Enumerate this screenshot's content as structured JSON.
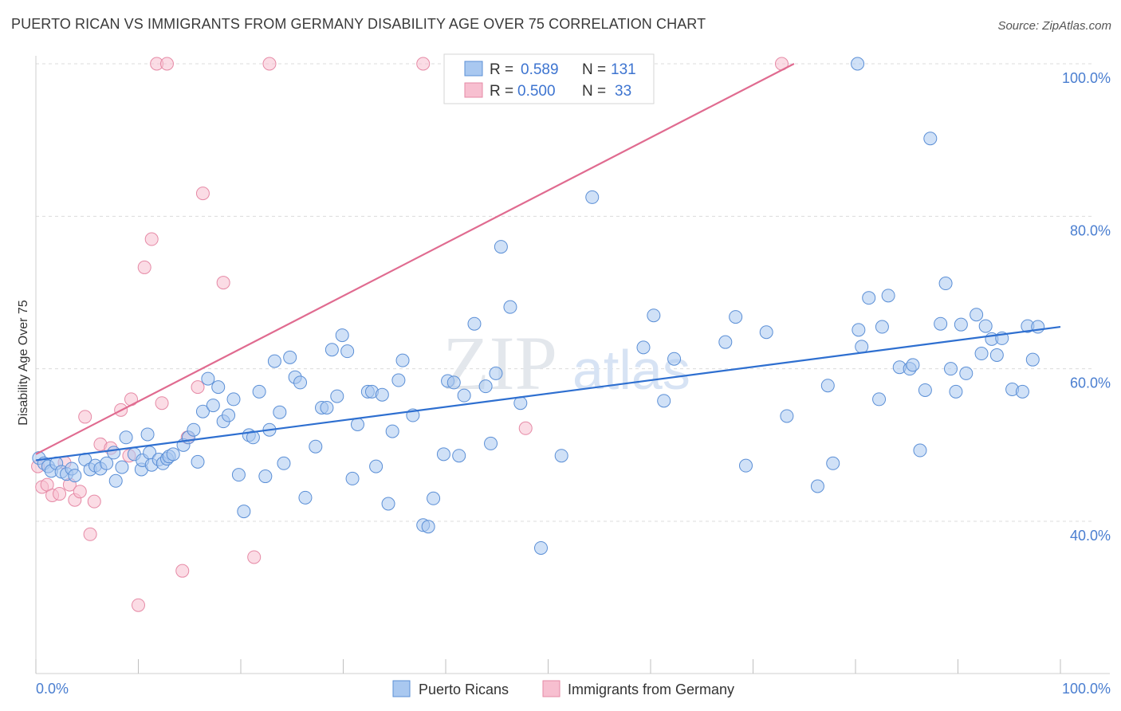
{
  "header": {
    "title": "PUERTO RICAN VS IMMIGRANTS FROM GERMANY DISABILITY AGE OVER 75 CORRELATION CHART",
    "source": "Source: ZipAtlas.com"
  },
  "watermark": {
    "zip": "ZIP",
    "atlas": "atlas"
  },
  "stats_legend": [
    {
      "r_label": "R =",
      "r_value": "0.589",
      "n_label": "N =",
      "n_value": "131"
    },
    {
      "r_label": "R =",
      "r_value": "0.500",
      "n_label": "N =",
      "n_value": "33"
    }
  ],
  "chart_data": {
    "type": "scatter",
    "title": "PUERTO RICAN VS IMMIGRANTS FROM GERMANY DISABILITY AGE OVER 75 CORRELATION CHART",
    "xlabel": "",
    "ylabel": "Disability Age Over 75",
    "xlim": [
      0,
      100
    ],
    "ylim": [
      20,
      102
    ],
    "x_tick_labels": [
      {
        "value": 0,
        "label": "0.0%"
      },
      {
        "value": 100,
        "label": "100.0%"
      }
    ],
    "y_tick_labels": [
      {
        "value": 40,
        "label": "40.0%"
      },
      {
        "value": 60,
        "label": "60.0%"
      },
      {
        "value": 80,
        "label": "80.0%"
      },
      {
        "value": 100,
        "label": "100.0%"
      }
    ],
    "grid": true,
    "legend_position": "bottom",
    "colors": {
      "series1_fill": "#a9c8f0",
      "series1_stroke": "#5b8fd6",
      "series1_line": "#2e6fd0",
      "series2_fill": "#f7bfd0",
      "series2_stroke": "#e68aa6",
      "series2_line": "#e06b90"
    },
    "series": [
      {
        "name": "Puerto Ricans",
        "trend": {
          "x": [
            0,
            100
          ],
          "y": [
            48.0,
            65.5
          ]
        },
        "points": [
          [
            0.3,
            48.3
          ],
          [
            0.8,
            47.6
          ],
          [
            1.2,
            47.2
          ],
          [
            1.5,
            46.6
          ],
          [
            2.0,
            47.6
          ],
          [
            2.5,
            46.5
          ],
          [
            3.0,
            46.2
          ],
          [
            3.5,
            46.9
          ],
          [
            3.8,
            46.0
          ],
          [
            4.8,
            48.1
          ],
          [
            5.3,
            46.8
          ],
          [
            5.8,
            47.3
          ],
          [
            6.3,
            46.9
          ],
          [
            6.9,
            47.6
          ],
          [
            7.6,
            49.0
          ],
          [
            7.8,
            45.3
          ],
          [
            8.4,
            47.1
          ],
          [
            8.8,
            51.0
          ],
          [
            9.6,
            48.8
          ],
          [
            10.3,
            46.8
          ],
          [
            10.4,
            48.0
          ],
          [
            10.9,
            51.4
          ],
          [
            11.1,
            49.0
          ],
          [
            11.3,
            47.4
          ],
          [
            12.0,
            48.1
          ],
          [
            12.4,
            47.6
          ],
          [
            12.8,
            48.2
          ],
          [
            13.0,
            48.5
          ],
          [
            13.4,
            48.8
          ],
          [
            14.4,
            50.0
          ],
          [
            14.9,
            51.0
          ],
          [
            15.4,
            52.0
          ],
          [
            15.8,
            47.8
          ],
          [
            16.3,
            54.4
          ],
          [
            16.8,
            58.7
          ],
          [
            17.3,
            55.2
          ],
          [
            17.8,
            57.6
          ],
          [
            18.3,
            53.1
          ],
          [
            18.8,
            53.9
          ],
          [
            19.3,
            56.0
          ],
          [
            19.8,
            46.1
          ],
          [
            20.3,
            41.3
          ],
          [
            20.8,
            51.3
          ],
          [
            21.2,
            51.0
          ],
          [
            21.8,
            57.0
          ],
          [
            22.4,
            45.9
          ],
          [
            22.8,
            52.0
          ],
          [
            23.3,
            61.0
          ],
          [
            23.8,
            54.3
          ],
          [
            24.2,
            47.6
          ],
          [
            24.8,
            61.5
          ],
          [
            25.3,
            58.9
          ],
          [
            25.8,
            58.2
          ],
          [
            26.3,
            43.1
          ],
          [
            27.3,
            49.8
          ],
          [
            27.9,
            54.9
          ],
          [
            28.4,
            54.9
          ],
          [
            28.9,
            62.5
          ],
          [
            29.4,
            56.4
          ],
          [
            29.9,
            64.4
          ],
          [
            30.4,
            62.3
          ],
          [
            30.9,
            45.6
          ],
          [
            31.4,
            52.7
          ],
          [
            32.4,
            57.0
          ],
          [
            32.8,
            57.0
          ],
          [
            33.2,
            47.2
          ],
          [
            33.8,
            56.6
          ],
          [
            34.4,
            42.3
          ],
          [
            34.8,
            51.8
          ],
          [
            35.4,
            58.5
          ],
          [
            35.8,
            61.1
          ],
          [
            36.8,
            53.9
          ],
          [
            37.8,
            39.5
          ],
          [
            38.3,
            39.3
          ],
          [
            38.8,
            43.0
          ],
          [
            39.8,
            48.8
          ],
          [
            40.2,
            58.4
          ],
          [
            40.8,
            58.2
          ],
          [
            41.3,
            48.6
          ],
          [
            41.8,
            56.5
          ],
          [
            42.8,
            65.9
          ],
          [
            43.9,
            57.7
          ],
          [
            44.4,
            50.2
          ],
          [
            44.9,
            59.4
          ],
          [
            45.4,
            76.0
          ],
          [
            46.3,
            68.1
          ],
          [
            47.3,
            55.5
          ],
          [
            49.3,
            36.5
          ],
          [
            51.3,
            48.6
          ],
          [
            54.3,
            82.5
          ],
          [
            59.3,
            62.8
          ],
          [
            60.3,
            67.0
          ],
          [
            61.3,
            55.8
          ],
          [
            62.3,
            61.3
          ],
          [
            67.3,
            63.5
          ],
          [
            68.3,
            66.8
          ],
          [
            69.3,
            47.3
          ],
          [
            71.3,
            64.8
          ],
          [
            73.3,
            53.8
          ],
          [
            76.3,
            44.6
          ],
          [
            77.3,
            57.8
          ],
          [
            77.8,
            47.6
          ],
          [
            80.3,
            65.1
          ],
          [
            80.6,
            62.9
          ],
          [
            81.3,
            69.3
          ],
          [
            82.3,
            56.0
          ],
          [
            82.6,
            65.5
          ],
          [
            83.2,
            69.6
          ],
          [
            84.3,
            60.2
          ],
          [
            85.3,
            60.0
          ],
          [
            85.6,
            60.5
          ],
          [
            86.3,
            49.3
          ],
          [
            86.8,
            57.2
          ],
          [
            87.3,
            90.2
          ],
          [
            88.3,
            65.9
          ],
          [
            88.8,
            71.2
          ],
          [
            89.3,
            60.0
          ],
          [
            89.8,
            57.0
          ],
          [
            90.3,
            65.8
          ],
          [
            90.8,
            59.4
          ],
          [
            91.8,
            67.1
          ],
          [
            92.3,
            62.0
          ],
          [
            92.7,
            65.6
          ],
          [
            93.3,
            63.9
          ],
          [
            93.8,
            61.8
          ],
          [
            94.3,
            64.0
          ],
          [
            95.3,
            57.3
          ],
          [
            96.3,
            57.0
          ],
          [
            96.8,
            65.6
          ],
          [
            97.3,
            61.2
          ],
          [
            97.8,
            65.5
          ],
          [
            80.2,
            100.0
          ]
        ]
      },
      {
        "name": "Immigrants from Germany",
        "trend": {
          "x": [
            0,
            74
          ],
          "y": [
            48.8,
            100.0
          ]
        },
        "points": [
          [
            0.2,
            47.2
          ],
          [
            0.6,
            44.5
          ],
          [
            1.1,
            44.8
          ],
          [
            1.6,
            43.4
          ],
          [
            2.3,
            43.6
          ],
          [
            2.8,
            47.7
          ],
          [
            3.3,
            44.8
          ],
          [
            3.8,
            42.8
          ],
          [
            4.3,
            43.9
          ],
          [
            4.8,
            53.7
          ],
          [
            5.3,
            38.3
          ],
          [
            5.7,
            42.6
          ],
          [
            6.3,
            50.1
          ],
          [
            7.3,
            49.6
          ],
          [
            8.3,
            54.6
          ],
          [
            9.1,
            48.6
          ],
          [
            9.3,
            56.0
          ],
          [
            10.0,
            29.0
          ],
          [
            10.6,
            73.3
          ],
          [
            11.3,
            77.0
          ],
          [
            11.8,
            100.0
          ],
          [
            12.3,
            55.5
          ],
          [
            12.8,
            100.0
          ],
          [
            14.3,
            33.5
          ],
          [
            14.8,
            51.0
          ],
          [
            15.8,
            57.6
          ],
          [
            16.3,
            83.0
          ],
          [
            18.3,
            71.3
          ],
          [
            21.3,
            35.3
          ],
          [
            22.8,
            100.0
          ],
          [
            37.8,
            100.0
          ],
          [
            47.8,
            52.2
          ],
          [
            72.8,
            100.0
          ]
        ]
      }
    ]
  },
  "bottom_legend": [
    "Puerto Ricans",
    "Immigrants from Germany"
  ]
}
